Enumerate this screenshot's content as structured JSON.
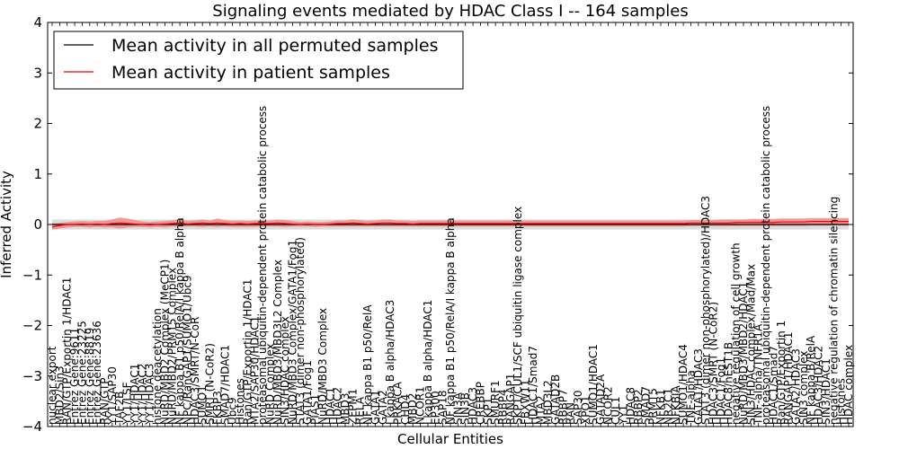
{
  "chart_data": {
    "type": "line",
    "title": "Signaling events mediated by HDAC Class I -- 164 samples",
    "xlabel": "Cellular Entities",
    "ylabel": "Inferred Activity",
    "ylim": [
      -4,
      4
    ],
    "yticks": [
      -4,
      -3,
      -2,
      -1,
      0,
      1,
      2,
      3,
      4
    ],
    "ytick_labels": [
      "−4",
      "−3",
      "−2",
      "−1",
      "0",
      "1",
      "2",
      "3",
      "4"
    ],
    "legend": {
      "position": "top-left",
      "entries": [
        {
          "label": "Mean activity in all permuted samples",
          "color": "#000000"
        },
        {
          "label": "Mean activity in patient samples",
          "color": "#ff0000"
        }
      ]
    },
    "categories": [
      "nuclear export",
      "MBD2/Sin3",
      "RAN/GTP/Exportin 1/HDAC1",
      "Entrez Gene:9611",
      "Entrez Gene:23225",
      "Entrez Gene:8819",
      "Entrez Gene:23636",
      "RAN/GTP",
      "YY1/SAP30",
      "TAF2B",
      "YY1/LSF",
      "YY1/HDAC1",
      "YY1/HDAC2",
      "YY1/HDAC3",
      "histone deacetylation",
      "NuRD/MBD2 Complex (MeCP1)",
      "NuRD/MBD2/PRMT5 Complex",
      "NF kappa B1 p50/RelA/I kappa B alpha",
      "NPC/RanGAP1/SUMO1/Ubc9",
      "HDAC3/SMRT/N-CoR",
      "SUMO1",
      "SMRT (N-CoR2)",
      "FKBP3",
      "SMAD7/HDAC1",
      "Ubc9",
      "Histones",
      "Ran/GTP/Exportin 1/HDAC1",
      "MTA2/SAP30/HDAC1",
      "proteasomal ubiquitin-dependent protein catabolic process",
      "NuRD Complex",
      "NuRD/MBD3/MBD3L2 Complex",
      "SIN3/HDAC complex",
      "NuRD/MBD3 Complex/GATA1/Fog1",
      "STAT3 (dimer non-phosphorylated)",
      "GATA1/Fog1",
      "PIAS1",
      "NuRD/MBD3 Complex",
      "HDAC1",
      "HDAC2",
      "MBD3",
      "ZFPM1",
      "RELA",
      "NF kappa B1 p50/RelA",
      "GATA1",
      "GATA2",
      "I kappa B alpha/HDAC3",
      "PRKACA",
      "CHD4",
      "MBD2",
      "NCOR1",
      "I kappa B alpha/HDAC1",
      "EP300",
      "SAP18",
      "NF kappa B1 p50/RelA/I kappa B alpha",
      "SIN3A",
      "SIN3B",
      "HDAC3",
      "CREBBP",
      "SKP1",
      "SMURF1",
      "RBBP4",
      "RANGAP1",
      "SKP1/CUL1/SCF ubiquitin ligase complex",
      "FBXW11",
      "HDAC1/Smad7",
      "MTA2",
      "MBD3L2",
      "GATAD2B",
      "RBBP7",
      "RAN",
      "SAP30",
      "XPO1",
      "SUMO1/HDAC1",
      "GATAD2A",
      "NCOR2",
      "CUL1",
      "YY1",
      "HDAC8",
      "RBBP2",
      "SMAD7",
      "PRMT5",
      "NFKB1",
      "NR2C1",
      "NFKBIA",
      "SUMO1/HDAC4",
      "TNF-alpha",
      "GATA1/HDAC3",
      "STAT3 (dimer non-phosphorylated)/HDAC3",
      "HDAC3/SMRT (N-CoR2)",
      "HDAC1/Fog1",
      "HDAC8/hEST1B",
      "negative regulation of cell growth",
      "NuRD/MBD3/MBD2/HDAC1",
      "SIN3/HDAC complex/Mad/Max",
      "TNF-alpha/TNFR1A",
      "proteasomal ubiquitin-dependent protein catabolic process",
      "HDAC1/Smad7",
      "Ran/GTP/Exportin 1",
      "RANGAP1/HDAC1",
      "GATA2/HDAC3",
      "SIN3 complex",
      "NF kappa B/RelA",
      "HDAC3/HDAC2",
      "SIN3/HDAC1",
      "negative regulation of chromatin silencing",
      "Histones",
      "HDAC complex"
    ],
    "series": [
      {
        "name": "Mean activity in all permuted samples",
        "color": "#000000",
        "values": [
          0.0,
          0.0,
          0.0,
          0.0,
          0.0,
          0.0,
          0.0,
          0.0,
          0.0,
          0.0,
          0.0,
          0.0,
          0.0,
          0.0,
          0.0,
          0.0,
          0.0,
          0.0,
          0.0,
          0.0,
          0.0,
          0.0,
          0.0,
          0.0,
          0.0,
          0.0,
          0.0,
          0.0,
          0.0,
          0.0,
          0.0,
          0.0,
          0.0,
          0.0,
          0.0,
          0.0,
          0.0,
          0.0,
          0.0,
          0.0,
          0.0,
          0.0,
          0.0,
          0.0,
          0.0,
          0.0,
          0.0,
          0.0,
          0.0,
          0.0,
          0.0,
          0.0,
          0.0,
          0.0,
          0.0,
          0.0,
          0.0,
          0.0,
          0.0,
          0.0,
          0.0,
          0.0,
          0.0,
          0.0,
          0.0,
          0.0,
          0.0,
          0.0,
          0.0,
          0.0,
          0.0,
          0.0,
          0.0,
          0.0,
          0.0,
          0.0,
          0.0,
          0.0,
          0.0,
          0.0,
          0.0,
          0.0,
          0.0,
          0.0,
          0.0,
          0.0,
          0.0,
          0.0,
          0.0,
          0.0,
          0.0,
          0.0,
          0.0,
          0.0,
          0.0,
          0.0,
          0.0,
          0.0,
          0.0,
          0.0,
          0.0,
          0.0,
          0.0,
          0.0,
          0.0,
          0.0,
          0.0
        ],
        "band": 0.1
      },
      {
        "name": "Mean activity in patient samples",
        "color": "#ff0000",
        "values": [
          -0.05,
          -0.02,
          0.0,
          0.0,
          0.01,
          0.0,
          0.01,
          0.0,
          0.02,
          0.03,
          0.02,
          0.01,
          0.0,
          -0.01,
          0.0,
          0.01,
          0.02,
          0.03,
          0.01,
          0.02,
          0.03,
          0.02,
          0.03,
          0.02,
          0.01,
          0.02,
          0.01,
          0.02,
          0.02,
          0.02,
          0.03,
          0.02,
          0.01,
          0.0,
          0.01,
          0.0,
          0.0,
          0.01,
          0.02,
          0.02,
          0.03,
          0.02,
          0.01,
          0.02,
          0.03,
          0.03,
          0.02,
          0.02,
          0.01,
          0.02,
          0.02,
          0.02,
          0.02,
          0.02,
          0.02,
          0.02,
          0.02,
          0.02,
          0.02,
          0.02,
          0.02,
          0.02,
          0.02,
          0.02,
          0.02,
          0.02,
          0.02,
          0.02,
          0.02,
          0.02,
          0.02,
          0.02,
          0.02,
          0.02,
          0.02,
          0.02,
          0.02,
          0.02,
          0.02,
          0.02,
          0.02,
          0.02,
          0.02,
          0.02,
          0.02,
          0.03,
          0.03,
          0.03,
          0.03,
          0.03,
          0.03,
          0.04,
          0.04,
          0.04,
          0.04,
          0.04,
          0.04,
          0.05,
          0.05,
          0.05,
          0.05,
          0.06,
          0.06,
          0.06,
          0.06,
          0.06,
          0.06
        ],
        "band_low": [
          -0.1,
          -0.08,
          -0.06,
          -0.05,
          -0.05,
          -0.06,
          -0.05,
          -0.06,
          -0.06,
          -0.08,
          -0.06,
          -0.05,
          -0.05,
          -0.06,
          -0.05,
          -0.06,
          -0.04,
          -0.05,
          -0.04,
          -0.04,
          -0.05,
          -0.04,
          -0.05,
          -0.04,
          -0.05,
          -0.05,
          -0.05,
          -0.05,
          -0.04,
          -0.04,
          -0.04,
          -0.05,
          -0.04,
          -0.04,
          -0.04,
          -0.05,
          -0.04,
          -0.04,
          -0.04,
          -0.04,
          -0.04,
          -0.04,
          -0.04,
          -0.04,
          -0.04,
          -0.04,
          -0.04,
          -0.04,
          -0.04,
          -0.04,
          -0.04,
          -0.04,
          -0.04,
          -0.04,
          -0.04,
          -0.04,
          -0.04,
          -0.04,
          -0.04,
          -0.04,
          -0.04,
          -0.04,
          -0.04,
          -0.04,
          -0.04,
          -0.04,
          -0.04,
          -0.04,
          -0.04,
          -0.04,
          -0.04,
          -0.04,
          -0.04,
          -0.04,
          -0.04,
          -0.04,
          -0.04,
          -0.04,
          -0.04,
          -0.04,
          -0.04,
          -0.04,
          -0.04,
          -0.04,
          -0.04,
          -0.03,
          -0.03,
          -0.03,
          -0.03,
          -0.03,
          -0.03,
          -0.03,
          -0.03,
          -0.03,
          -0.03,
          -0.03,
          -0.03,
          -0.03,
          -0.03,
          -0.03,
          -0.03,
          -0.02,
          -0.02,
          -0.02,
          -0.02,
          -0.02,
          -0.02
        ],
        "band_high": [
          0.02,
          0.03,
          0.05,
          0.06,
          0.07,
          0.06,
          0.07,
          0.07,
          0.1,
          0.14,
          0.12,
          0.09,
          0.06,
          0.05,
          0.06,
          0.07,
          0.08,
          0.1,
          0.07,
          0.08,
          0.1,
          0.08,
          0.12,
          0.09,
          0.07,
          0.08,
          0.07,
          0.08,
          0.08,
          0.08,
          0.1,
          0.09,
          0.07,
          0.05,
          0.06,
          0.05,
          0.05,
          0.06,
          0.08,
          0.08,
          0.1,
          0.09,
          0.07,
          0.08,
          0.1,
          0.1,
          0.08,
          0.08,
          0.07,
          0.08,
          0.08,
          0.08,
          0.08,
          0.08,
          0.08,
          0.08,
          0.08,
          0.08,
          0.08,
          0.08,
          0.08,
          0.08,
          0.08,
          0.08,
          0.08,
          0.08,
          0.08,
          0.08,
          0.08,
          0.08,
          0.08,
          0.08,
          0.08,
          0.08,
          0.08,
          0.08,
          0.08,
          0.08,
          0.08,
          0.08,
          0.08,
          0.08,
          0.08,
          0.08,
          0.08,
          0.09,
          0.09,
          0.09,
          0.09,
          0.1,
          0.1,
          0.1,
          0.1,
          0.11,
          0.11,
          0.11,
          0.11,
          0.12,
          0.12,
          0.12,
          0.12,
          0.13,
          0.13,
          0.13,
          0.13,
          0.13,
          0.13
        ]
      }
    ]
  }
}
